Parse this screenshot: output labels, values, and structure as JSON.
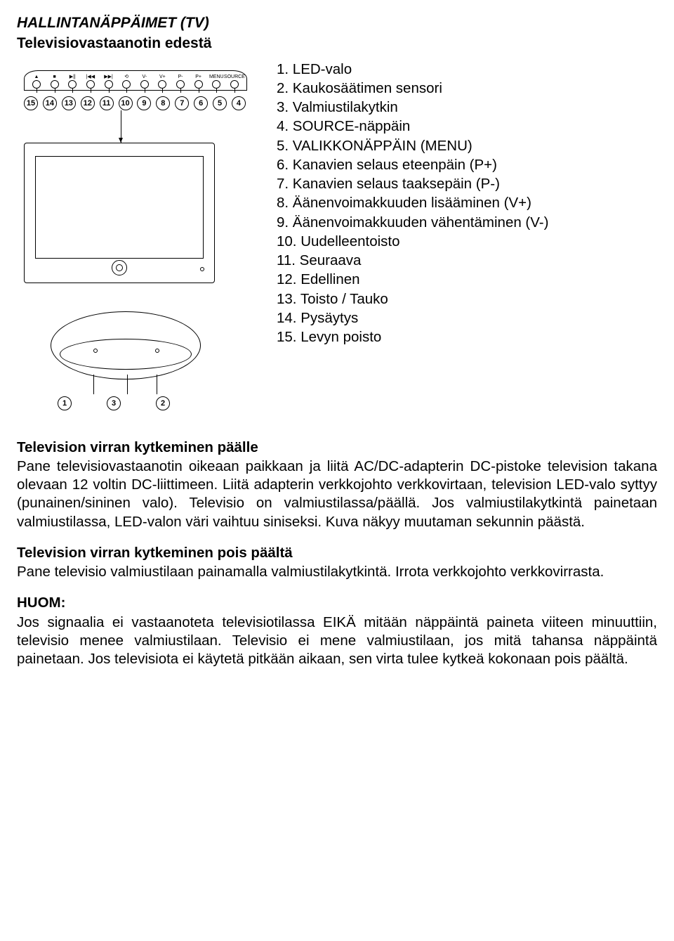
{
  "header": {
    "title": "HALLINTANÄPPÄIMET (TV)",
    "subtitle": "Televisiovastaanotin edestä"
  },
  "buttons": {
    "symbols": [
      "▲",
      "■",
      "▶||",
      "|◀◀",
      "▶▶|",
      "⟲",
      "V-",
      "V+",
      "P-",
      "P+",
      "MENU",
      "SOURCE"
    ],
    "numbers": [
      "15",
      "14",
      "13",
      "12",
      "11",
      "10",
      "9",
      "8",
      "7",
      "6",
      "5",
      "4"
    ]
  },
  "base_numbers": [
    "1",
    "3",
    "2"
  ],
  "control_list": [
    "1. LED-valo",
    "2. Kaukosäätimen sensori",
    "3. Valmiustilakytkin",
    "4. SOURCE-näppäin",
    "5. VALIKKONÄPPÄIN (MENU)",
    "6. Kanavien selaus eteenpäin (P+)",
    "7. Kanavien selaus taaksepäin (P-)",
    "8. Äänenvoimakkuuden lisääminen (V+)",
    "9. Äänenvoimakkuuden vähentäminen (V-)",
    "10. Uudelleentoisto",
    "11. Seuraava",
    "12. Edellinen",
    "13. Toisto / Tauko",
    "14. Pysäytys",
    "15. Levyn poisto"
  ],
  "sections": {
    "power_on": {
      "heading": "Television virran kytkeminen päälle",
      "body": "Pane televisiovastaanotin oikeaan paikkaan ja liitä AC/DC-adapterin DC-pistoke television takana olevaan 12 voltin DC-liittimeen. Liitä adapterin verkkojohto verkkovirtaan, television LED-valo syttyy (punainen/sininen valo). Televisio on valmiustilassa/päällä. Jos valmiustilakytkintä painetaan valmiustilassa, LED-valon väri vaihtuu siniseksi. Kuva näkyy muutaman sekunnin päästä."
    },
    "power_off": {
      "heading": "Television virran kytkeminen pois päältä",
      "body": "Pane televisio valmiustilaan painamalla valmiustilakytkintä. Irrota verkkojohto verkkovirrasta."
    },
    "note": {
      "heading": "HUOM:",
      "body": "Jos signaalia ei vastaanoteta televisiotilassa EIKÄ mitään näppäintä paineta viiteen minuuttiin, televisio menee valmiustilaan. Televisio ei mene valmiustilaan, jos mitä tahansa näppäintä painetaan. Jos televisiota ei käytetä pitkään aikaan, sen virta tulee kytkeä kokonaan pois päältä."
    }
  },
  "colors": {
    "text": "#000000",
    "background": "#ffffff"
  }
}
